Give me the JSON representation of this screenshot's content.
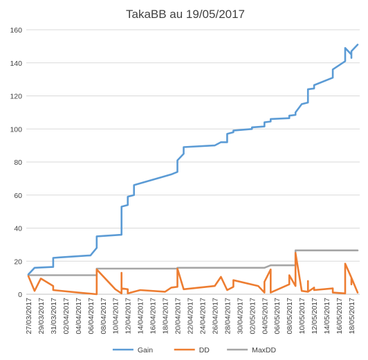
{
  "chart_data": {
    "type": "line",
    "title": "TakaBB au 19/05/2017",
    "ylim": [
      0,
      160
    ],
    "yticks": [
      "0",
      "20",
      "40",
      "60",
      "80",
      "100",
      "120",
      "140",
      "160"
    ],
    "xtick_labels": [
      "27/03/2017",
      "29/03/2017",
      "31/03/2017",
      "02/04/2017",
      "04/04/2017",
      "06/04/2017",
      "08/04/2017",
      "10/04/2017",
      "12/04/2017",
      "14/04/2017",
      "16/04/2017",
      "18/04/2017",
      "20/04/2017",
      "22/04/2017",
      "24/04/2017",
      "26/04/2017",
      "28/04/2017",
      "30/04/2017",
      "02/05/2017",
      "04/05/2017",
      "06/05/2017",
      "08/05/2017",
      "10/05/2017",
      "12/05/2017",
      "14/05/2017",
      "16/05/2017",
      "18/05/2017"
    ],
    "x_range": [
      "2017-03-27",
      "2017-05-19"
    ],
    "grid": true,
    "legend_position": "bottom",
    "series": [
      {
        "name": "Gain",
        "color": "#5B9BD5",
        "points": [
          [
            "2017-03-27",
            12
          ],
          [
            "2017-03-28",
            16
          ],
          [
            "2017-03-31",
            16.5
          ],
          [
            "2017-03-31",
            22
          ],
          [
            "2017-04-01",
            22.3
          ],
          [
            "2017-04-06",
            23.5
          ],
          [
            "2017-04-07",
            28
          ],
          [
            "2017-04-07",
            35
          ],
          [
            "2017-04-11",
            36
          ],
          [
            "2017-04-11",
            53
          ],
          [
            "2017-04-12",
            54
          ],
          [
            "2017-04-12",
            59
          ],
          [
            "2017-04-13",
            60
          ],
          [
            "2017-04-13",
            66
          ],
          [
            "2017-04-19",
            72.5
          ],
          [
            "2017-04-20",
            74
          ],
          [
            "2017-04-20",
            81
          ],
          [
            "2017-04-21",
            85
          ],
          [
            "2017-04-21",
            89
          ],
          [
            "2017-04-26",
            90
          ],
          [
            "2017-04-27",
            92
          ],
          [
            "2017-04-28",
            92
          ],
          [
            "2017-04-28",
            97
          ],
          [
            "2017-04-29",
            98
          ],
          [
            "2017-04-29",
            99
          ],
          [
            "2017-05-02",
            100
          ],
          [
            "2017-05-02",
            101
          ],
          [
            "2017-05-04",
            101.5
          ],
          [
            "2017-05-04",
            104
          ],
          [
            "2017-05-05",
            104.5
          ],
          [
            "2017-05-05",
            106
          ],
          [
            "2017-05-08",
            106.5
          ],
          [
            "2017-05-08",
            108
          ],
          [
            "2017-05-09",
            108.5
          ],
          [
            "2017-05-09",
            110
          ],
          [
            "2017-05-10",
            115
          ],
          [
            "2017-05-11",
            116
          ],
          [
            "2017-05-11",
            124
          ],
          [
            "2017-05-12",
            124.5
          ],
          [
            "2017-05-12",
            126.5
          ],
          [
            "2017-05-15",
            131
          ],
          [
            "2017-05-15",
            136
          ],
          [
            "2017-05-17",
            141
          ],
          [
            "2017-05-17",
            149
          ],
          [
            "2017-05-18",
            145
          ],
          [
            "2017-05-18",
            143
          ],
          [
            "2017-05-18",
            147
          ],
          [
            "2017-05-19",
            151
          ]
        ]
      },
      {
        "name": "DD",
        "color": "#ED7D31",
        "points": [
          [
            "2017-03-27",
            11
          ],
          [
            "2017-03-28",
            2
          ],
          [
            "2017-03-29",
            9.5
          ],
          [
            "2017-03-31",
            5
          ],
          [
            "2017-03-31",
            2.5
          ],
          [
            "2017-04-04",
            1
          ],
          [
            "2017-04-07",
            0
          ],
          [
            "2017-04-07",
            15
          ],
          [
            "2017-04-10",
            3
          ],
          [
            "2017-04-11",
            0.5
          ],
          [
            "2017-04-11",
            13
          ],
          [
            "2017-04-11",
            3.5
          ],
          [
            "2017-04-12",
            3
          ],
          [
            "2017-04-12",
            0.5
          ],
          [
            "2017-04-13",
            1.5
          ],
          [
            "2017-04-14",
            2.5
          ],
          [
            "2017-04-18",
            1.5
          ],
          [
            "2017-04-19",
            4
          ],
          [
            "2017-04-20",
            4.5
          ],
          [
            "2017-04-20",
            15.5
          ],
          [
            "2017-04-21",
            3
          ],
          [
            "2017-04-26",
            5
          ],
          [
            "2017-04-27",
            10.5
          ],
          [
            "2017-04-28",
            2.5
          ],
          [
            "2017-04-29",
            4.5
          ],
          [
            "2017-04-29",
            8.5
          ],
          [
            "2017-05-03",
            5
          ],
          [
            "2017-05-04",
            1
          ],
          [
            "2017-05-04",
            7.5
          ],
          [
            "2017-05-05",
            15
          ],
          [
            "2017-05-05",
            1
          ],
          [
            "2017-05-08",
            6
          ],
          [
            "2017-05-08",
            11.5
          ],
          [
            "2017-05-09",
            5
          ],
          [
            "2017-05-09",
            25
          ],
          [
            "2017-05-10",
            2
          ],
          [
            "2017-05-11",
            1.5
          ],
          [
            "2017-05-11",
            8
          ],
          [
            "2017-05-11",
            1.5
          ],
          [
            "2017-05-12",
            4
          ],
          [
            "2017-05-12",
            2.5
          ],
          [
            "2017-05-15",
            3.5
          ],
          [
            "2017-05-15",
            1
          ],
          [
            "2017-05-17",
            0.5
          ],
          [
            "2017-05-17",
            18.5
          ],
          [
            "2017-05-18",
            10
          ],
          [
            "2017-05-18",
            6
          ],
          [
            "2017-05-18",
            10
          ],
          [
            "2017-05-19",
            1
          ]
        ]
      },
      {
        "name": "MaxDD",
        "color": "#A5A5A5",
        "points": [
          [
            "2017-03-27",
            11.5
          ],
          [
            "2017-04-07",
            11.5
          ],
          [
            "2017-04-07",
            15.5
          ],
          [
            "2017-04-20",
            15.5
          ],
          [
            "2017-04-20",
            16
          ],
          [
            "2017-05-04",
            16
          ],
          [
            "2017-05-05",
            17.5
          ],
          [
            "2017-05-09",
            17.5
          ],
          [
            "2017-05-09",
            26.5
          ],
          [
            "2017-05-19",
            26.5
          ]
        ]
      }
    ]
  }
}
